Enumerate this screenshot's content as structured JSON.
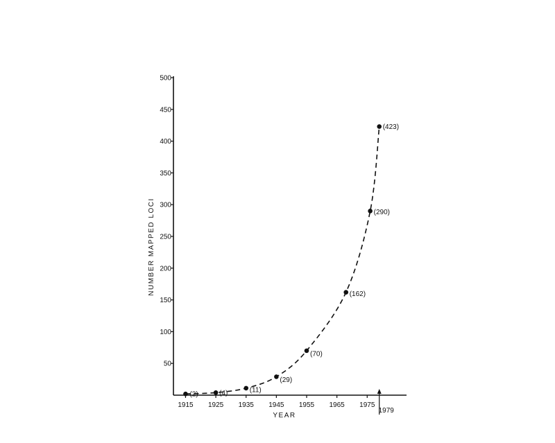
{
  "chart_data": {
    "type": "line",
    "title": "",
    "xlabel": "YEAR",
    "ylabel": "NUMBER MAPPED LOCI",
    "x_ticks": [
      "1915",
      "1925",
      "1935",
      "1945",
      "1955",
      "1965",
      "1975"
    ],
    "x_marker_label": "1979",
    "x_marker_value": 1979,
    "y_ticks": [
      "50",
      "100",
      "150",
      "200",
      "250",
      "300",
      "350",
      "400",
      "450",
      "500"
    ],
    "xlim": [
      1911,
      1988
    ],
    "ylim": [
      0,
      500
    ],
    "grid": false,
    "line_style": "dashed",
    "series": [
      {
        "points": [
          {
            "x": 1915,
            "y": 2,
            "label": "(2)"
          },
          {
            "x": 1925,
            "y": 4,
            "label": "(4)"
          },
          {
            "x": 1935,
            "y": 11,
            "label": "(11)"
          },
          {
            "x": 1945,
            "y": 29,
            "label": "(29)"
          },
          {
            "x": 1955,
            "y": 70,
            "label": "(70)"
          },
          {
            "x": 1968,
            "y": 162,
            "label": "(162)"
          },
          {
            "x": 1976,
            "y": 290,
            "label": "(290)"
          },
          {
            "x": 1979,
            "y": 423,
            "label": "(423)"
          }
        ]
      }
    ],
    "colors": {
      "ink": "#111111",
      "background": "#ffffff"
    }
  }
}
